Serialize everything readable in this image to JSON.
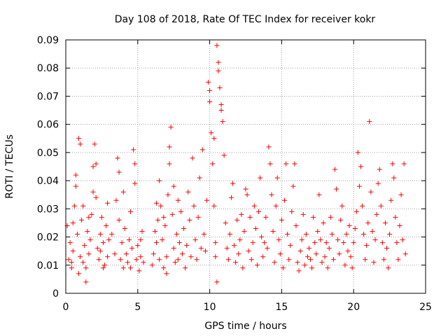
{
  "chart_data": {
    "type": "scatter",
    "title": "Day 108 of 2018, Rate Of TEC Index for receiver kokr",
    "xlabel": "GPS time / hours",
    "ylabel": "ROTI / TECUs",
    "xlim": [
      0,
      25
    ],
    "ylim": [
      0,
      0.09
    ],
    "x_ticks": [
      0,
      5,
      10,
      15,
      20,
      25
    ],
    "x_tick_labels": [
      "0",
      "5",
      "10",
      "15",
      "20",
      "25"
    ],
    "y_ticks": [
      0,
      0.01,
      0.02,
      0.03,
      0.04,
      0.05,
      0.06,
      0.07,
      0.08,
      0.09
    ],
    "y_tick_labels": [
      "0",
      "0.01",
      "0.02",
      "0.03",
      "0.04",
      "0.05",
      "0.06",
      "0.07",
      "0.08",
      "0.09"
    ],
    "grid": true,
    "marker": "+",
    "marker_color": "#ff0000",
    "series": [
      {
        "name": "ROTI",
        "points": [
          [
            0.1,
            0.024
          ],
          [
            0.2,
            0.012
          ],
          [
            0.3,
            0.018
          ],
          [
            0.4,
            0.009
          ],
          [
            0.5,
            0.015
          ],
          [
            0.6,
            0.031
          ],
          [
            0.7,
            0.038
          ],
          [
            0.8,
            0.021
          ],
          [
            0.9,
            0.007
          ],
          [
            1.0,
            0.013
          ],
          [
            1.1,
            0.026
          ],
          [
            1.2,
            0.011
          ],
          [
            1.3,
            0.017
          ],
          [
            1.4,
            0.009
          ],
          [
            1.5,
            0.022
          ],
          [
            1.6,
            0.014
          ],
          [
            1.7,
            0.019
          ],
          [
            1.8,
            0.028
          ],
          [
            1.9,
            0.045
          ],
          [
            2.0,
            0.053
          ],
          [
            2.1,
            0.034
          ],
          [
            2.2,
            0.016
          ],
          [
            2.3,
            0.012
          ],
          [
            2.4,
            0.021
          ],
          [
            2.5,
            0.027
          ],
          [
            2.6,
            0.018
          ],
          [
            2.7,
            0.01
          ],
          [
            2.8,
            0.024
          ],
          [
            2.9,
            0.032
          ],
          [
            3.0,
            0.019
          ],
          [
            0.4,
            0.011
          ],
          [
            0.5,
            0.025
          ],
          [
            0.7,
            0.042
          ],
          [
            0.9,
            0.055
          ],
          [
            1.0,
            0.053
          ],
          [
            1.2,
            0.031
          ],
          [
            1.4,
            0.004
          ],
          [
            1.6,
            0.027
          ],
          [
            1.9,
            0.036
          ],
          [
            2.1,
            0.046
          ],
          [
            2.4,
            0.015
          ],
          [
            2.6,
            0.009
          ],
          [
            2.9,
            0.013
          ],
          [
            3.2,
            0.021
          ],
          [
            3.4,
            0.014
          ],
          [
            3.5,
            0.033
          ],
          [
            3.6,
            0.048
          ],
          [
            3.7,
            0.026
          ],
          [
            3.8,
            0.012
          ],
          [
            3.9,
            0.018
          ],
          [
            4.0,
            0.009
          ],
          [
            4.1,
            0.023
          ],
          [
            4.2,
            0.014
          ],
          [
            4.3,
            0.011
          ],
          [
            4.4,
            0.019
          ],
          [
            4.5,
            0.029
          ],
          [
            4.6,
            0.016
          ],
          [
            4.7,
            0.051
          ],
          [
            4.8,
            0.039
          ],
          [
            4.9,
            0.012
          ],
          [
            5.0,
            0.017
          ],
          [
            5.1,
            0.008
          ],
          [
            5.2,
            0.013
          ],
          [
            5.3,
            0.022
          ],
          [
            5.4,
            0.011
          ],
          [
            3.7,
            0.043
          ],
          [
            4.0,
            0.036
          ],
          [
            4.5,
            0.009
          ],
          [
            4.8,
            0.046
          ],
          [
            5.2,
            0.019
          ],
          [
            6.0,
            0.01
          ],
          [
            6.1,
            0.014
          ],
          [
            6.2,
            0.022
          ],
          [
            6.3,
            0.018
          ],
          [
            6.4,
            0.026
          ],
          [
            6.5,
            0.012
          ],
          [
            6.6,
            0.031
          ],
          [
            6.7,
            0.019
          ],
          [
            6.8,
            0.009
          ],
          [
            6.9,
            0.024
          ],
          [
            7.0,
            0.013
          ],
          [
            7.1,
            0.035
          ],
          [
            7.2,
            0.046
          ],
          [
            7.3,
            0.059
          ],
          [
            7.4,
            0.028
          ],
          [
            7.5,
            0.016
          ],
          [
            7.6,
            0.011
          ],
          [
            7.7,
            0.021
          ],
          [
            7.8,
            0.033
          ],
          [
            7.9,
            0.018
          ],
          [
            6.3,
            0.032
          ],
          [
            6.5,
            0.04
          ],
          [
            6.8,
            0.027
          ],
          [
            7.0,
            0.007
          ],
          [
            7.2,
            0.052
          ],
          [
            7.5,
            0.038
          ],
          [
            7.8,
            0.012
          ],
          [
            8.0,
            0.029
          ],
          [
            8.1,
            0.014
          ],
          [
            8.2,
            0.023
          ],
          [
            8.3,
            0.009
          ],
          [
            8.4,
            0.017
          ],
          [
            8.5,
            0.036
          ],
          [
            8.6,
            0.026
          ],
          [
            8.7,
            0.013
          ],
          [
            8.8,
            0.048
          ],
          [
            8.9,
            0.031
          ],
          [
            9.0,
            0.019
          ],
          [
            9.1,
            0.012
          ],
          [
            9.2,
            0.027
          ],
          [
            9.3,
            0.041
          ],
          [
            9.4,
            0.016
          ],
          [
            9.5,
            0.051
          ],
          [
            9.6,
            0.021
          ],
          [
            9.7,
            0.015
          ],
          [
            9.8,
            0.033
          ],
          [
            9.9,
            0.075
          ],
          [
            10.0,
            0.068
          ],
          [
            10.1,
            0.057
          ],
          [
            10.2,
            0.046
          ],
          [
            10.3,
            0.031
          ],
          [
            10.4,
            0.018
          ],
          [
            10.5,
            0.088
          ],
          [
            10.6,
            0.079
          ],
          [
            10.7,
            0.073
          ],
          [
            10.8,
            0.065
          ],
          [
            10.9,
            0.061
          ],
          [
            11.0,
            0.049
          ],
          [
            11.1,
            0.025
          ],
          [
            11.2,
            0.016
          ],
          [
            10.0,
            0.072
          ],
          [
            10.3,
            0.055
          ],
          [
            10.6,
            0.082
          ],
          [
            10.8,
            0.067
          ],
          [
            10.4,
            0.013
          ],
          [
            10.5,
            0.004
          ],
          [
            11.3,
            0.012
          ],
          [
            11.4,
            0.021
          ],
          [
            11.5,
            0.034
          ],
          [
            11.6,
            0.039
          ],
          [
            11.7,
            0.017
          ],
          [
            11.8,
            0.011
          ],
          [
            11.9,
            0.026
          ],
          [
            12.0,
            0.014
          ],
          [
            12.1,
            0.019
          ],
          [
            12.2,
            0.028
          ],
          [
            12.3,
            0.009
          ],
          [
            12.4,
            0.022
          ],
          [
            12.5,
            0.037
          ],
          [
            12.6,
            0.035
          ],
          [
            12.7,
            0.015
          ],
          [
            12.8,
            0.027
          ],
          [
            12.9,
            0.012
          ],
          [
            13.0,
            0.018
          ],
          [
            13.1,
            0.031
          ],
          [
            13.2,
            0.023
          ],
          [
            13.3,
            0.01
          ],
          [
            13.4,
            0.029
          ],
          [
            13.5,
            0.041
          ],
          [
            13.6,
            0.02
          ],
          [
            13.7,
            0.013
          ],
          [
            13.8,
            0.018
          ],
          [
            13.9,
            0.027
          ],
          [
            14.0,
            0.016
          ],
          [
            14.1,
            0.052
          ],
          [
            14.2,
            0.046
          ],
          [
            14.3,
            0.035
          ],
          [
            14.4,
            0.022
          ],
          [
            14.5,
            0.011
          ],
          [
            14.6,
            0.031
          ],
          [
            14.7,
            0.041
          ],
          [
            14.8,
            0.019
          ],
          [
            14.9,
            0.014
          ],
          [
            15.0,
            0.026
          ],
          [
            15.1,
            0.009
          ],
          [
            15.2,
            0.033
          ],
          [
            15.3,
            0.046
          ],
          [
            15.4,
            0.021
          ],
          [
            15.5,
            0.012
          ],
          [
            15.6,
            0.017
          ],
          [
            15.7,
            0.029
          ],
          [
            15.8,
            0.038
          ],
          [
            15.9,
            0.046
          ],
          [
            16.0,
            0.024
          ],
          [
            16.1,
            0.011
          ],
          [
            16.2,
            0.008
          ],
          [
            16.3,
            0.015
          ],
          [
            16.4,
            0.019
          ],
          [
            16.5,
            0.028
          ],
          [
            16.6,
            0.01
          ],
          [
            16.7,
            0.021
          ],
          [
            16.8,
            0.013
          ],
          [
            16.9,
            0.016
          ],
          [
            17.0,
            0.012
          ],
          [
            17.1,
            0.009
          ],
          [
            17.2,
            0.027
          ],
          [
            17.3,
            0.018
          ],
          [
            17.4,
            0.014
          ],
          [
            17.5,
            0.022
          ],
          [
            17.6,
            0.035
          ],
          [
            17.7,
            0.019
          ],
          [
            17.8,
            0.011
          ],
          [
            17.9,
            0.025
          ],
          [
            18.0,
            0.013
          ],
          [
            18.1,
            0.018
          ],
          [
            18.2,
            0.009
          ],
          [
            18.3,
            0.016
          ],
          [
            18.4,
            0.027
          ],
          [
            18.5,
            0.021
          ],
          [
            18.6,
            0.012
          ],
          [
            18.7,
            0.044
          ],
          [
            18.8,
            0.037
          ],
          [
            18.9,
            0.019
          ],
          [
            19.0,
            0.014
          ],
          [
            19.1,
            0.026
          ],
          [
            19.2,
            0.031
          ],
          [
            19.3,
            0.018
          ],
          [
            19.4,
            0.01
          ],
          [
            19.5,
            0.021
          ],
          [
            19.6,
            0.015
          ],
          [
            19.7,
            0.024
          ],
          [
            19.8,
            0.013
          ],
          [
            19.9,
            0.009
          ],
          [
            20.0,
            0.018
          ],
          [
            20.1,
            0.023
          ],
          [
            20.2,
            0.029
          ],
          [
            20.3,
            0.05
          ],
          [
            20.4,
            0.038
          ],
          [
            20.5,
            0.045
          ],
          [
            20.6,
            0.031
          ],
          [
            20.7,
            0.021
          ],
          [
            20.8,
            0.012
          ],
          [
            20.9,
            0.017
          ],
          [
            21.0,
            0.025
          ],
          [
            21.1,
            0.061
          ],
          [
            21.2,
            0.036
          ],
          [
            21.3,
            0.022
          ],
          [
            21.4,
            0.011
          ],
          [
            21.5,
            0.019
          ],
          [
            21.6,
            0.028
          ],
          [
            21.7,
            0.039
          ],
          [
            21.8,
            0.044
          ],
          [
            21.9,
            0.031
          ],
          [
            22.0,
            0.018
          ],
          [
            22.1,
            0.012
          ],
          [
            22.2,
            0.025
          ],
          [
            22.3,
            0.016
          ],
          [
            22.4,
            0.009
          ],
          [
            22.5,
            0.021
          ],
          [
            22.6,
            0.033
          ],
          [
            22.7,
            0.046
          ],
          [
            22.8,
            0.041
          ],
          [
            22.9,
            0.027
          ],
          [
            23.0,
            0.018
          ],
          [
            23.1,
            0.012
          ],
          [
            23.2,
            0.024
          ],
          [
            23.3,
            0.035
          ],
          [
            23.4,
            0.019
          ],
          [
            23.5,
            0.046
          ],
          [
            23.6,
            0.014
          ]
        ]
      }
    ]
  }
}
